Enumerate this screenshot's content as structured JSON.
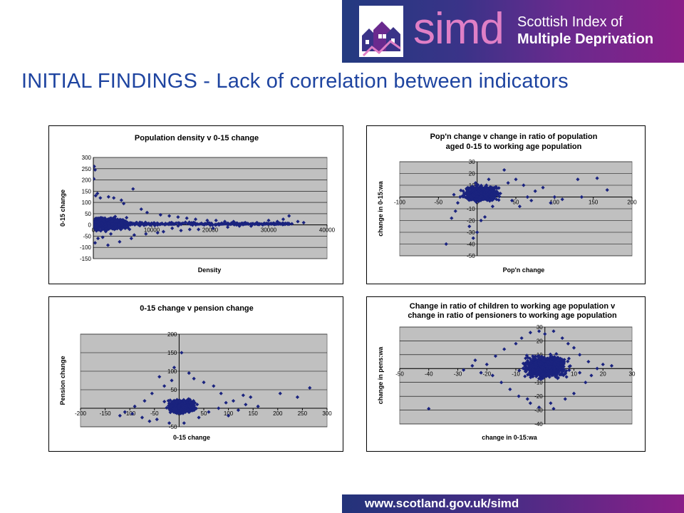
{
  "header": {
    "logo_word": "simd",
    "logo_line1": "Scottish Index of",
    "logo_line2": "Multiple Deprivation",
    "brand_colors": {
      "banner_left": "#233a80",
      "banner_right": "#8a1f88",
      "logo_pink": "#e07fc6"
    },
    "logo_icon": "houses-icon"
  },
  "page_title": "INITIAL FINDINGS - Lack of correlation between indicators",
  "footer": {
    "url_text": "www.scotland.gov.uk/simd"
  },
  "chart_data": [
    {
      "type": "scatter",
      "title": "Population density v 0-15 change",
      "xlabel": "Density",
      "ylabel": "0-15 change",
      "xlim": [
        0,
        40000
      ],
      "ylim": [
        -150,
        300
      ],
      "xticks": [
        0,
        10000,
        20000,
        30000,
        40000
      ],
      "yticks": [
        -150,
        -100,
        -50,
        0,
        50,
        100,
        150,
        200,
        250,
        300
      ],
      "grid": true,
      "legend": "none",
      "marker_color": "#1a237e",
      "series": [
        {
          "points": [
            [
              150,
              260
            ],
            [
              300,
              245
            ],
            [
              80,
              205
            ],
            [
              700,
              140
            ],
            [
              1200,
              120
            ],
            [
              400,
              130
            ],
            [
              2600,
              125
            ],
            [
              3500,
              120
            ],
            [
              4800,
              110
            ],
            [
              6800,
              160
            ],
            [
              5200,
              95
            ],
            [
              8200,
              70
            ],
            [
              9200,
              55
            ],
            [
              11500,
              45
            ],
            [
              13000,
              40
            ],
            [
              14500,
              35
            ],
            [
              16000,
              30
            ],
            [
              17500,
              25
            ],
            [
              19500,
              20
            ],
            [
              21000,
              20
            ],
            [
              22500,
              15
            ],
            [
              24000,
              15
            ],
            [
              26000,
              10
            ],
            [
              28000,
              10
            ],
            [
              30000,
              20
            ],
            [
              31500,
              15
            ],
            [
              32500,
              25
            ],
            [
              33500,
              40
            ],
            [
              35000,
              15
            ],
            [
              36000,
              10
            ],
            [
              6500,
              -60
            ],
            [
              4500,
              -75
            ],
            [
              2500,
              -90
            ],
            [
              7000,
              -45
            ],
            [
              9000,
              -40
            ],
            [
              12000,
              -30
            ],
            [
              15000,
              -25
            ],
            [
              18000,
              -20
            ],
            [
              20500,
              -15
            ],
            [
              23000,
              -10
            ],
            [
              25000,
              -5
            ],
            [
              27000,
              -5
            ],
            [
              29000,
              0
            ],
            [
              11000,
              -35
            ],
            [
              16500,
              -20
            ],
            [
              300,
              -80
            ],
            [
              800,
              -60
            ],
            [
              1600,
              -55
            ],
            [
              3000,
              -40
            ],
            [
              13500,
              -15
            ],
            [
              17000,
              5
            ],
            [
              21500,
              0
            ],
            [
              24500,
              0
            ],
            [
              26500,
              5
            ],
            [
              28500,
              5
            ]
          ]
        }
      ]
    },
    {
      "type": "scatter",
      "title": "Pop'n change v change in ratio of population aged 0-15 to working age population",
      "xlabel": "Pop'n change",
      "ylabel": "change in 0-15:wa",
      "xlim": [
        -100,
        200
      ],
      "ylim": [
        -50,
        30
      ],
      "xticks": [
        -100,
        -50,
        0,
        50,
        100,
        150,
        200
      ],
      "yticks": [
        -50,
        -40,
        -30,
        -20,
        -10,
        0,
        10,
        20,
        30
      ],
      "grid": true,
      "legend": "none",
      "marker_color": "#1a237e",
      "series": [
        {
          "points": [
            [
              -40,
              -40
            ],
            [
              -33,
              -18
            ],
            [
              -28,
              -12
            ],
            [
              -22,
              0
            ],
            [
              -18,
              5
            ],
            [
              -12,
              8
            ],
            [
              -30,
              2
            ],
            [
              -25,
              -5
            ],
            [
              35,
              23
            ],
            [
              60,
              10
            ],
            [
              75,
              5
            ],
            [
              100,
              0
            ],
            [
              110,
              -2
            ],
            [
              130,
              15
            ],
            [
              155,
              16
            ],
            [
              168,
              6
            ],
            [
              135,
              0
            ],
            [
              95,
              -5
            ],
            [
              85,
              8
            ],
            [
              70,
              -3
            ],
            [
              55,
              -8
            ],
            [
              45,
              -3
            ],
            [
              40,
              12
            ],
            [
              50,
              15
            ],
            [
              -10,
              -25
            ],
            [
              0,
              -30
            ],
            [
              5,
              -20
            ],
            [
              10,
              -17
            ],
            [
              -5,
              -35
            ],
            [
              20,
              -8
            ],
            [
              30,
              3
            ],
            [
              25,
              -2
            ],
            [
              15,
              15
            ],
            [
              12,
              10
            ],
            [
              -2,
              12
            ],
            [
              65,
              0
            ]
          ]
        }
      ]
    },
    {
      "type": "scatter",
      "title": "0-15 change v pension change",
      "xlabel": "0-15 change",
      "ylabel": "Pension change",
      "xlim": [
        -200,
        300
      ],
      "ylim": [
        -50,
        200
      ],
      "xticks": [
        -200,
        -150,
        -100,
        -50,
        0,
        50,
        100,
        150,
        200,
        250,
        300
      ],
      "yticks": [
        -50,
        0,
        50,
        100,
        150,
        200
      ],
      "grid": true,
      "legend": "none",
      "marker_color": "#1a237e",
      "series": [
        {
          "points": [
            [
              5,
              150
            ],
            [
              -10,
              110
            ],
            [
              20,
              95
            ],
            [
              30,
              80
            ],
            [
              -30,
              60
            ],
            [
              -55,
              40
            ],
            [
              -70,
              20
            ],
            [
              -90,
              5
            ],
            [
              -110,
              -10
            ],
            [
              -120,
              -20
            ],
            [
              -75,
              -25
            ],
            [
              -60,
              -35
            ],
            [
              -45,
              -30
            ],
            [
              -20,
              -40
            ],
            [
              10,
              -40
            ],
            [
              40,
              -25
            ],
            [
              60,
              -10
            ],
            [
              80,
              0
            ],
            [
              95,
              15
            ],
            [
              110,
              20
            ],
            [
              130,
              35
            ],
            [
              145,
              30
            ],
            [
              160,
              5
            ],
            [
              120,
              -5
            ],
            [
              205,
              40
            ],
            [
              240,
              30
            ],
            [
              265,
              55
            ],
            [
              85,
              40
            ],
            [
              70,
              60
            ],
            [
              -15,
              75
            ],
            [
              50,
              70
            ],
            [
              100,
              -20
            ],
            [
              135,
              10
            ],
            [
              -95,
              -15
            ],
            [
              -40,
              85
            ]
          ]
        }
      ]
    },
    {
      "type": "scatter",
      "title": "Change in ratio of children to working age population v change in ratio of pensioners to working age population",
      "xlabel": "change in 0-15:wa",
      "ylabel": "change in pens:wa",
      "xlim": [
        -50,
        30
      ],
      "ylim": [
        -40,
        30
      ],
      "xticks": [
        -50,
        -40,
        -30,
        -20,
        -10,
        0,
        10,
        20,
        30
      ],
      "yticks": [
        -40,
        -30,
        -20,
        -10,
        0,
        10,
        20,
        30
      ],
      "grid": true,
      "legend": "none",
      "marker_color": "#1a237e",
      "series": [
        {
          "points": [
            [
              -40,
              -29
            ],
            [
              -25,
              2
            ],
            [
              -28,
              -1
            ],
            [
              -20,
              3
            ],
            [
              -18,
              -5
            ],
            [
              -15,
              -10
            ],
            [
              -12,
              -15
            ],
            [
              -9,
              -20
            ],
            [
              -5,
              -25
            ],
            [
              -2,
              -28
            ],
            [
              3,
              -29
            ],
            [
              2,
              -25
            ],
            [
              -8,
              22
            ],
            [
              -5,
              26
            ],
            [
              -2,
              27
            ],
            [
              0,
              25
            ],
            [
              3,
              27
            ],
            [
              6,
              22
            ],
            [
              10,
              15
            ],
            [
              12,
              10
            ],
            [
              15,
              5
            ],
            [
              20,
              3
            ],
            [
              23,
              2
            ],
            [
              18,
              0
            ],
            [
              16,
              -5
            ],
            [
              14,
              -10
            ],
            [
              10,
              -18
            ],
            [
              7,
              -22
            ],
            [
              -22,
              -3
            ],
            [
              -24,
              6
            ],
            [
              -17,
              9
            ],
            [
              -14,
              14
            ],
            [
              -10,
              18
            ],
            [
              12,
              -3
            ],
            [
              8,
              18
            ],
            [
              -6,
              -22
            ]
          ]
        }
      ]
    }
  ]
}
